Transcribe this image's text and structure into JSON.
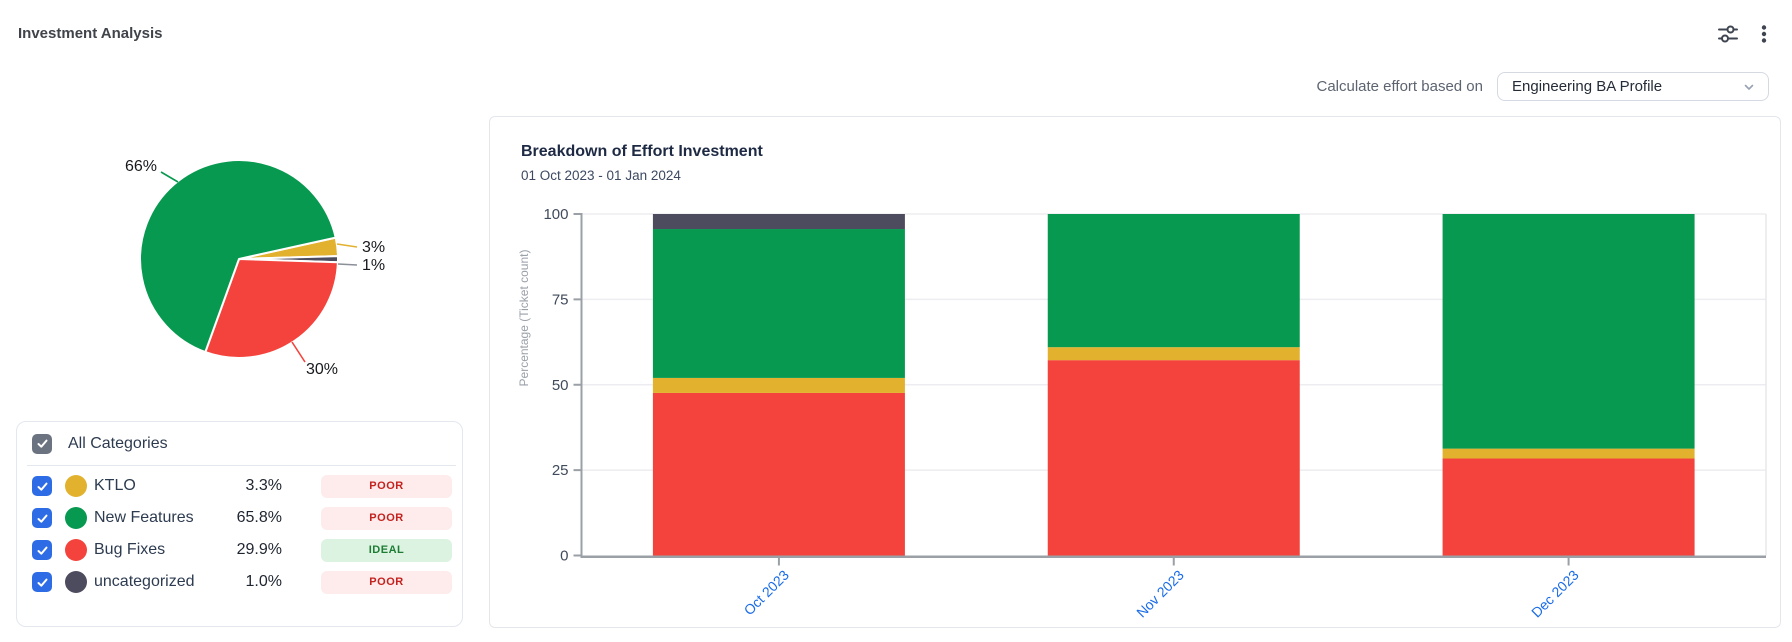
{
  "header": {
    "title": "Investment Analysis"
  },
  "controls": {
    "label": "Calculate effort based on",
    "selected_profile": "Engineering BA Profile"
  },
  "categories_panel": {
    "title": "All Categories",
    "items": [
      {
        "label": "KTLO",
        "color": "#e2b12e",
        "pct": "3.3%",
        "status": "POOR"
      },
      {
        "label": "New Features",
        "color": "#089950",
        "pct": "65.8%",
        "status": "POOR"
      },
      {
        "label": "Bug Fixes",
        "color": "#f4433c",
        "pct": "29.9%",
        "status": "IDEAL"
      },
      {
        "label": "uncategorized",
        "color": "#4d4b5e",
        "pct": "1.0%",
        "status": "POOR"
      }
    ]
  },
  "chart_data": [
    {
      "type": "pie",
      "slices": [
        {
          "label": "KTLO",
          "value": 3,
          "display": "3%",
          "color": "#e2b12e"
        },
        {
          "label": "uncategorized",
          "value": 1,
          "display": "1%",
          "color": "#4d4b5e"
        },
        {
          "label": "Bug Fixes",
          "value": 30,
          "display": "30%",
          "color": "#f4433c"
        },
        {
          "label": "New Features",
          "value": 66,
          "display": "66%",
          "color": "#089950"
        }
      ],
      "start_angle_deg": -12.5
    },
    {
      "type": "bar",
      "stacked": true,
      "title": "Breakdown of Effort Investment",
      "subtitle": "01 Oct 2023 - 01 Jan 2024",
      "ylabel": "Percentage (Ticket count)",
      "ylim": [
        0,
        100
      ],
      "yticks": [
        0,
        25,
        50,
        75,
        100
      ],
      "categories": [
        "Oct 2023",
        "Nov 2023",
        "Dec 2023"
      ],
      "series": [
        {
          "name": "Bug Fixes",
          "color": "#f4433c",
          "values": [
            47.6,
            57.2,
            28.4
          ]
        },
        {
          "name": "KTLO",
          "color": "#e2b12e",
          "values": [
            4.4,
            3.8,
            2.9
          ]
        },
        {
          "name": "New Features",
          "color": "#089950",
          "values": [
            43.6,
            39.0,
            68.7
          ]
        },
        {
          "name": "uncategorized",
          "color": "#4d4b5e",
          "values": [
            4.4,
            0,
            0
          ]
        }
      ],
      "grid": true,
      "legend": false
    }
  ]
}
